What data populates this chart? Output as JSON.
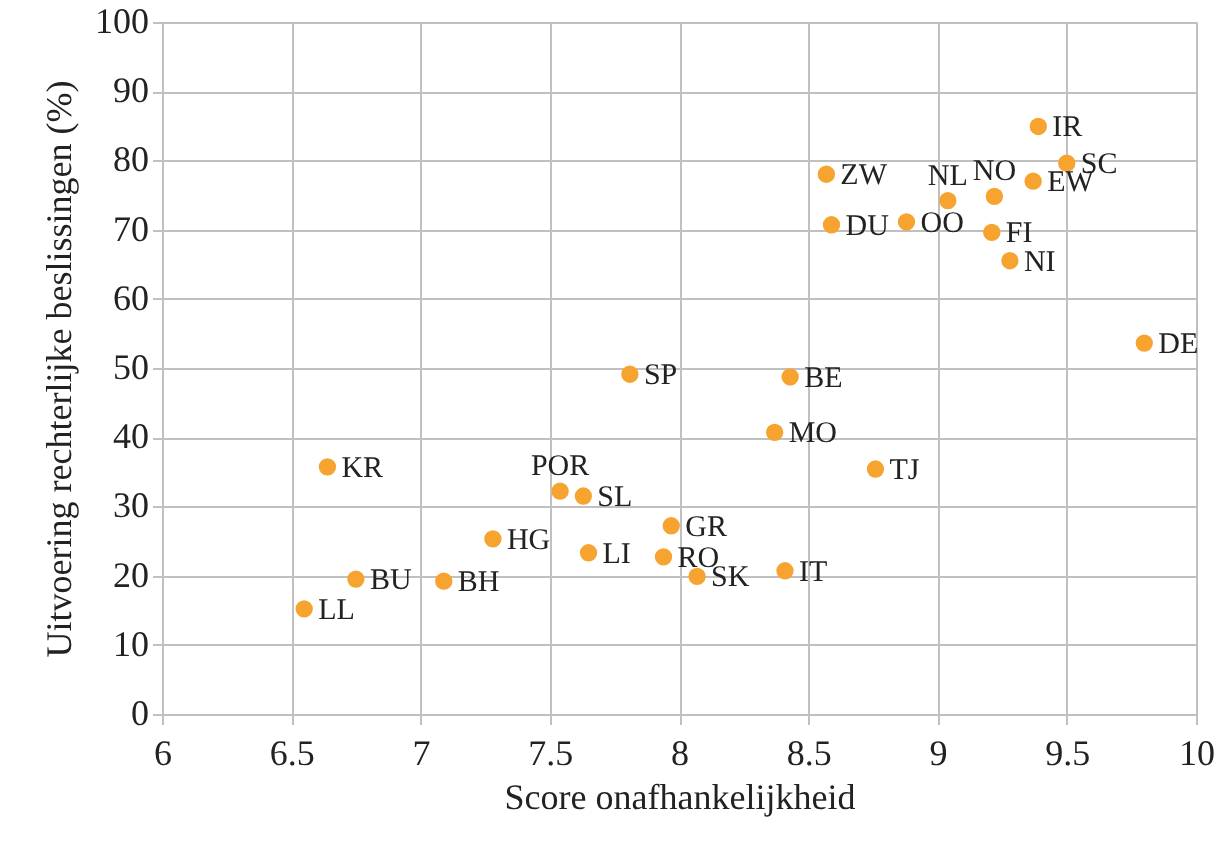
{
  "chart_data": {
    "type": "scatter",
    "xlabel": "Score onafhankelijkheid",
    "ylabel": "Uitvoering rechterlijke beslissingen (%)",
    "xlim": [
      6,
      10
    ],
    "xticks": [
      6,
      6.5,
      7,
      7.5,
      8,
      8.5,
      9,
      9.5,
      10
    ],
    "ylim": [
      0,
      100
    ],
    "yticks": [
      0,
      10,
      20,
      30,
      40,
      50,
      60,
      70,
      80,
      90,
      100
    ],
    "grid": true,
    "marker": "circle",
    "series": [
      {
        "color": "#f7a330",
        "x": [
          6.64,
          7.54,
          7.63,
          7.28,
          7.65,
          6.75,
          7.09,
          6.55,
          7.81,
          9.39,
          9.5,
          8.57,
          9.37,
          9.22,
          9.04,
          8.59,
          8.88,
          9.21,
          9.28,
          9.8,
          8.43,
          8.37,
          8.76,
          7.97,
          7.94,
          8.07,
          8.41
        ],
        "values": [
          35.7,
          32.2,
          31.5,
          25.3,
          23.3,
          19.5,
          19.2,
          15.2,
          49.1,
          84.9,
          79.6,
          78.0,
          77.0,
          74.8,
          74.2,
          70.7,
          71.1,
          69.6,
          65.5,
          53.6,
          48.7,
          40.7,
          35.4,
          27.2,
          22.7,
          19.9,
          20.7
        ]
      }
    ],
    "annotations": [
      {
        "text": "KR",
        "x": 6.64,
        "y": 35.7
      },
      {
        "text": "POR",
        "x": 7.54,
        "y": 32.2
      },
      {
        "text": "SL",
        "x": 7.63,
        "y": 31.5
      },
      {
        "text": "HG",
        "x": 7.28,
        "y": 25.3
      },
      {
        "text": "LI",
        "x": 7.65,
        "y": 23.3
      },
      {
        "text": "BU",
        "x": 6.75,
        "y": 19.5
      },
      {
        "text": "BH",
        "x": 7.09,
        "y": 19.2
      },
      {
        "text": "LL",
        "x": 6.55,
        "y": 15.2
      },
      {
        "text": "SP",
        "x": 7.81,
        "y": 49.1
      },
      {
        "text": "IR",
        "x": 9.39,
        "y": 84.9
      },
      {
        "text": "SC",
        "x": 9.5,
        "y": 79.6
      },
      {
        "text": "ZW",
        "x": 8.57,
        "y": 78.0
      },
      {
        "text": "EW",
        "x": 9.37,
        "y": 77.0
      },
      {
        "text": "NO",
        "x": 9.22,
        "y": 74.8
      },
      {
        "text": "NL",
        "x": 9.04,
        "y": 74.2
      },
      {
        "text": "DU",
        "x": 8.59,
        "y": 70.7
      },
      {
        "text": "OO",
        "x": 8.88,
        "y": 71.1
      },
      {
        "text": "FI",
        "x": 9.21,
        "y": 69.6
      },
      {
        "text": "NI",
        "x": 9.28,
        "y": 65.5
      },
      {
        "text": "DE",
        "x": 9.8,
        "y": 53.6
      },
      {
        "text": "BE",
        "x": 8.43,
        "y": 48.7
      },
      {
        "text": "MO",
        "x": 8.37,
        "y": 40.7
      },
      {
        "text": "TJ",
        "x": 8.76,
        "y": 35.4
      },
      {
        "text": "GR",
        "x": 7.97,
        "y": 27.2
      },
      {
        "text": "RO",
        "x": 7.94,
        "y": 22.7
      },
      {
        "text": "SK",
        "x": 8.07,
        "y": 19.9
      },
      {
        "text": "IT",
        "x": 8.41,
        "y": 20.7
      }
    ]
  }
}
